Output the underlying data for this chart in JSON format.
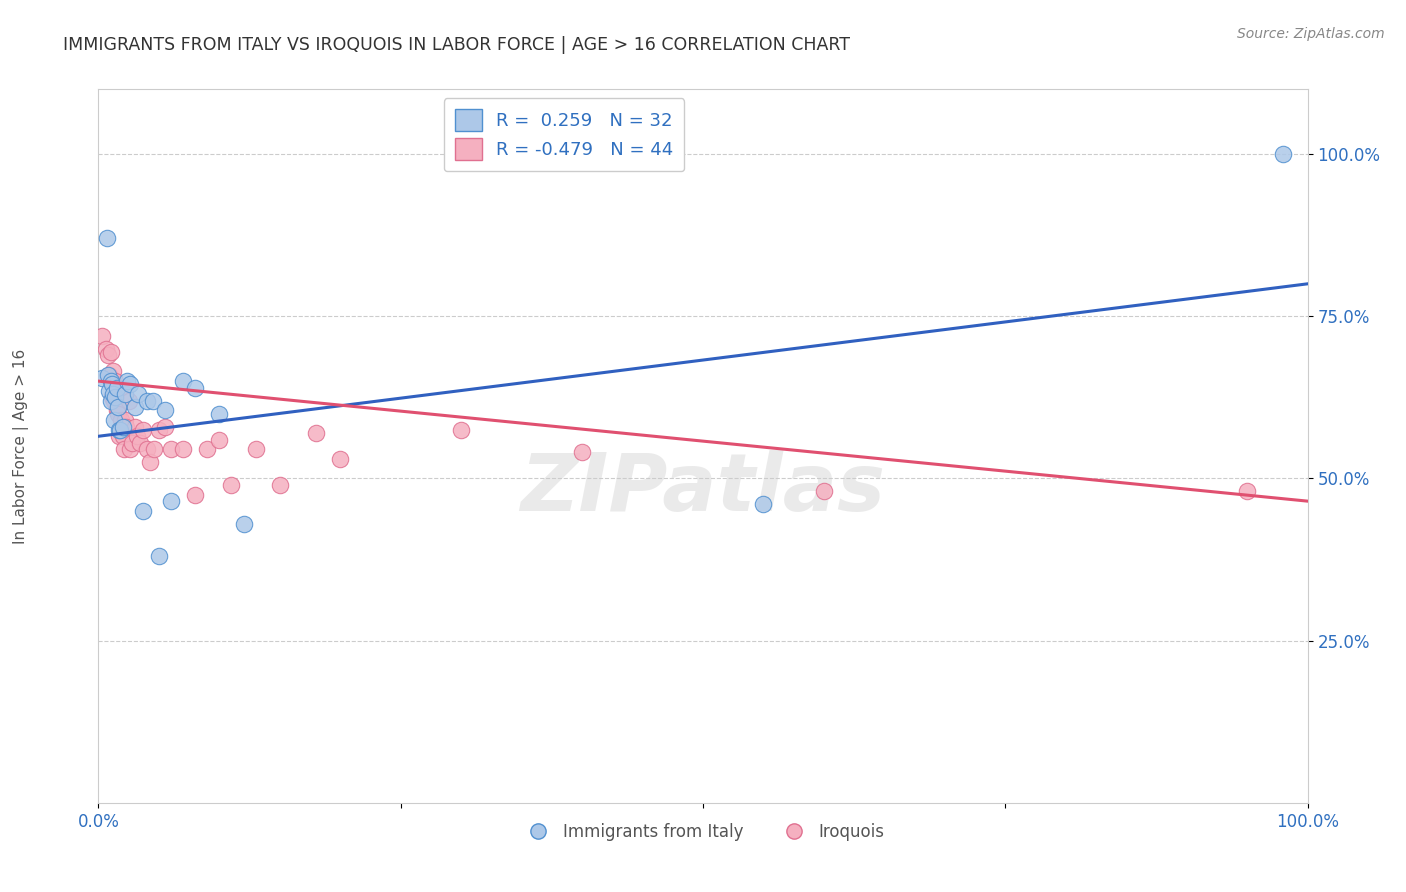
{
  "title": "IMMIGRANTS FROM ITALY VS IROQUOIS IN LABOR FORCE | AGE > 16 CORRELATION CHART",
  "source": "Source: ZipAtlas.com",
  "ylabel": "In Labor Force | Age > 16",
  "xlim": [
    0.0,
    1.0
  ],
  "ylim": [
    0.0,
    1.1
  ],
  "xticks": [
    0.0,
    0.25,
    0.5,
    0.75,
    1.0
  ],
  "xticklabels": [
    "0.0%",
    "",
    "",
    "",
    "100.0%"
  ],
  "yticks": [
    0.25,
    0.5,
    0.75,
    1.0
  ],
  "yticklabels": [
    "25.0%",
    "50.0%",
    "75.0%",
    "100.0%"
  ],
  "legend_italy_r": "0.259",
  "legend_italy_n": "32",
  "legend_iroquois_r": "-0.479",
  "legend_iroquois_n": "44",
  "italy_face_color": "#adc8e8",
  "iroquois_face_color": "#f5b0c0",
  "italy_edge_color": "#5090d0",
  "iroquois_edge_color": "#e07090",
  "italy_line_color": "#3060c0",
  "iroquois_line_color": "#e05070",
  "text_color": "#3070c0",
  "background_color": "#ffffff",
  "watermark": "ZIPatlas",
  "italy_x": [
    0.003,
    0.007,
    0.008,
    0.009,
    0.01,
    0.01,
    0.011,
    0.012,
    0.013,
    0.014,
    0.015,
    0.016,
    0.017,
    0.018,
    0.02,
    0.022,
    0.024,
    0.026,
    0.03,
    0.033,
    0.037,
    0.04,
    0.045,
    0.05,
    0.055,
    0.06,
    0.07,
    0.08,
    0.1,
    0.12,
    0.55,
    0.98
  ],
  "italy_y": [
    0.655,
    0.87,
    0.66,
    0.635,
    0.65,
    0.62,
    0.645,
    0.63,
    0.59,
    0.625,
    0.64,
    0.61,
    0.575,
    0.575,
    0.58,
    0.63,
    0.65,
    0.645,
    0.61,
    0.63,
    0.45,
    0.62,
    0.62,
    0.38,
    0.605,
    0.465,
    0.65,
    0.64,
    0.6,
    0.43,
    0.46,
    1.0
  ],
  "iroquois_x": [
    0.003,
    0.006,
    0.008,
    0.009,
    0.01,
    0.011,
    0.012,
    0.013,
    0.014,
    0.015,
    0.016,
    0.017,
    0.018,
    0.019,
    0.02,
    0.021,
    0.022,
    0.023,
    0.025,
    0.026,
    0.028,
    0.03,
    0.032,
    0.034,
    0.037,
    0.04,
    0.043,
    0.046,
    0.05,
    0.055,
    0.06,
    0.07,
    0.08,
    0.09,
    0.1,
    0.11,
    0.13,
    0.15,
    0.18,
    0.2,
    0.3,
    0.4,
    0.6,
    0.95
  ],
  "iroquois_y": [
    0.72,
    0.7,
    0.69,
    0.66,
    0.695,
    0.625,
    0.665,
    0.62,
    0.65,
    0.605,
    0.6,
    0.565,
    0.64,
    0.59,
    0.565,
    0.545,
    0.59,
    0.58,
    0.62,
    0.545,
    0.555,
    0.58,
    0.565,
    0.555,
    0.575,
    0.545,
    0.525,
    0.545,
    0.575,
    0.58,
    0.545,
    0.545,
    0.475,
    0.545,
    0.56,
    0.49,
    0.545,
    0.49,
    0.57,
    0.53,
    0.575,
    0.54,
    0.48,
    0.48
  ],
  "italy_line_x": [
    0.0,
    1.0
  ],
  "italy_line_y": [
    0.565,
    0.8
  ],
  "iroquois_line_x": [
    0.0,
    1.0
  ],
  "iroquois_line_y": [
    0.65,
    0.465
  ]
}
